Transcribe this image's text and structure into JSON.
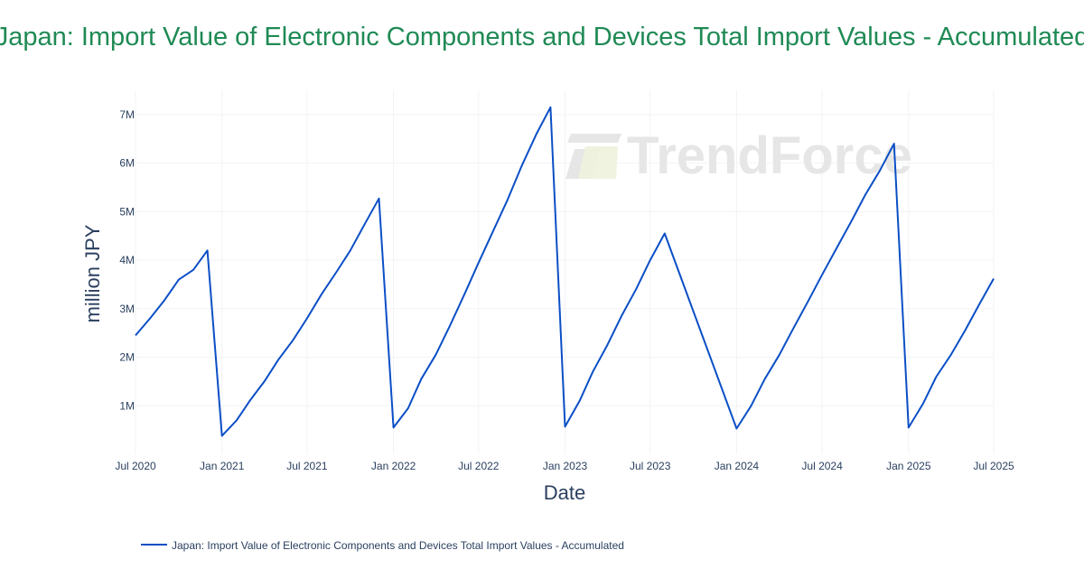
{
  "colors": {
    "title": "#1f8a55",
    "series": "#0b4fc6",
    "axis_text": "#2a3f5f",
    "grid": "#f1f3f6",
    "watermark": "#e6e6e6",
    "watermark_accent": "#eef2dc"
  },
  "watermark": {
    "text": "TrendForce"
  },
  "chart_data": {
    "type": "line",
    "title": "Japan: Import Value of Electronic Components and Devices Total Import Values - Accumulated",
    "xlabel": "Date",
    "ylabel": "million JPY",
    "x_range": [
      "2020-07-01",
      "2025-07-01"
    ],
    "ylim": [
      0,
      7500000
    ],
    "grid": true,
    "legend_position": "bottom-left",
    "x_ticks": [
      {
        "date": "2020-07-01",
        "label": "Jul 2020"
      },
      {
        "date": "2021-01-01",
        "label": "Jan 2021"
      },
      {
        "date": "2021-07-01",
        "label": "Jul 2021"
      },
      {
        "date": "2022-01-01",
        "label": "Jan 2022"
      },
      {
        "date": "2022-07-01",
        "label": "Jul 2022"
      },
      {
        "date": "2023-01-01",
        "label": "Jan 2023"
      },
      {
        "date": "2023-07-01",
        "label": "Jul 2023"
      },
      {
        "date": "2024-01-01",
        "label": "Jan 2024"
      },
      {
        "date": "2024-07-01",
        "label": "Jul 2024"
      },
      {
        "date": "2025-01-01",
        "label": "Jan 2025"
      },
      {
        "date": "2025-07-01",
        "label": "Jul 2025"
      }
    ],
    "y_ticks": [
      {
        "value": 1000000,
        "label": "1M"
      },
      {
        "value": 2000000,
        "label": "2M"
      },
      {
        "value": 3000000,
        "label": "3M"
      },
      {
        "value": 4000000,
        "label": "4M"
      },
      {
        "value": 5000000,
        "label": "5M"
      },
      {
        "value": 6000000,
        "label": "6M"
      },
      {
        "value": 7000000,
        "label": "7M"
      }
    ],
    "series": [
      {
        "name": "Japan: Import Value of Electronic Components and Devices Total Import Values - Accumulated",
        "points": [
          [
            "2020-07-01",
            2450000
          ],
          [
            "2020-08-01",
            2800000
          ],
          [
            "2020-09-01",
            3180000
          ],
          [
            "2020-10-01",
            3600000
          ],
          [
            "2020-11-01",
            3800000
          ],
          [
            "2020-12-01",
            4200000
          ],
          [
            "2021-01-01",
            380000
          ],
          [
            "2021-02-01",
            700000
          ],
          [
            "2021-03-01",
            1100000
          ],
          [
            "2021-04-01",
            1500000
          ],
          [
            "2021-05-01",
            1950000
          ],
          [
            "2021-06-01",
            2350000
          ],
          [
            "2021-07-01",
            2800000
          ],
          [
            "2021-08-01",
            3300000
          ],
          [
            "2021-09-01",
            3750000
          ],
          [
            "2021-10-01",
            4200000
          ],
          [
            "2021-11-01",
            4750000
          ],
          [
            "2021-12-01",
            5270000
          ],
          [
            "2022-01-01",
            550000
          ],
          [
            "2022-02-01",
            950000
          ],
          [
            "2022-03-01",
            1550000
          ],
          [
            "2022-04-01",
            2050000
          ],
          [
            "2022-05-01",
            2650000
          ],
          [
            "2022-06-01",
            3300000
          ],
          [
            "2022-07-01",
            3950000
          ],
          [
            "2022-08-01",
            4600000
          ],
          [
            "2022-09-01",
            5250000
          ],
          [
            "2022-10-01",
            5950000
          ],
          [
            "2022-11-01",
            6600000
          ],
          [
            "2022-12-01",
            7150000
          ],
          [
            "2023-01-01",
            570000
          ],
          [
            "2023-02-01",
            1100000
          ],
          [
            "2023-03-01",
            1700000
          ],
          [
            "2023-04-01",
            2250000
          ],
          [
            "2023-05-01",
            2850000
          ],
          [
            "2023-06-01",
            3400000
          ],
          [
            "2023-07-01",
            4000000
          ],
          [
            "2023-08-01",
            4550000
          ],
          [
            "2024-01-01",
            530000
          ],
          [
            "2024-02-01",
            1000000
          ],
          [
            "2024-03-01",
            1550000
          ],
          [
            "2024-04-01",
            2050000
          ],
          [
            "2024-05-01",
            2600000
          ],
          [
            "2024-06-01",
            3150000
          ],
          [
            "2024-07-01",
            3700000
          ],
          [
            "2024-08-01",
            4250000
          ],
          [
            "2024-09-01",
            4800000
          ],
          [
            "2024-10-01",
            5350000
          ],
          [
            "2024-11-01",
            5850000
          ],
          [
            "2024-12-01",
            6400000
          ],
          [
            "2025-01-01",
            550000
          ],
          [
            "2025-02-01",
            1050000
          ],
          [
            "2025-03-01",
            1600000
          ],
          [
            "2025-04-01",
            2050000
          ],
          [
            "2025-05-01",
            2550000
          ],
          [
            "2025-06-01",
            3100000
          ],
          [
            "2025-07-01",
            3620000
          ]
        ]
      }
    ]
  }
}
